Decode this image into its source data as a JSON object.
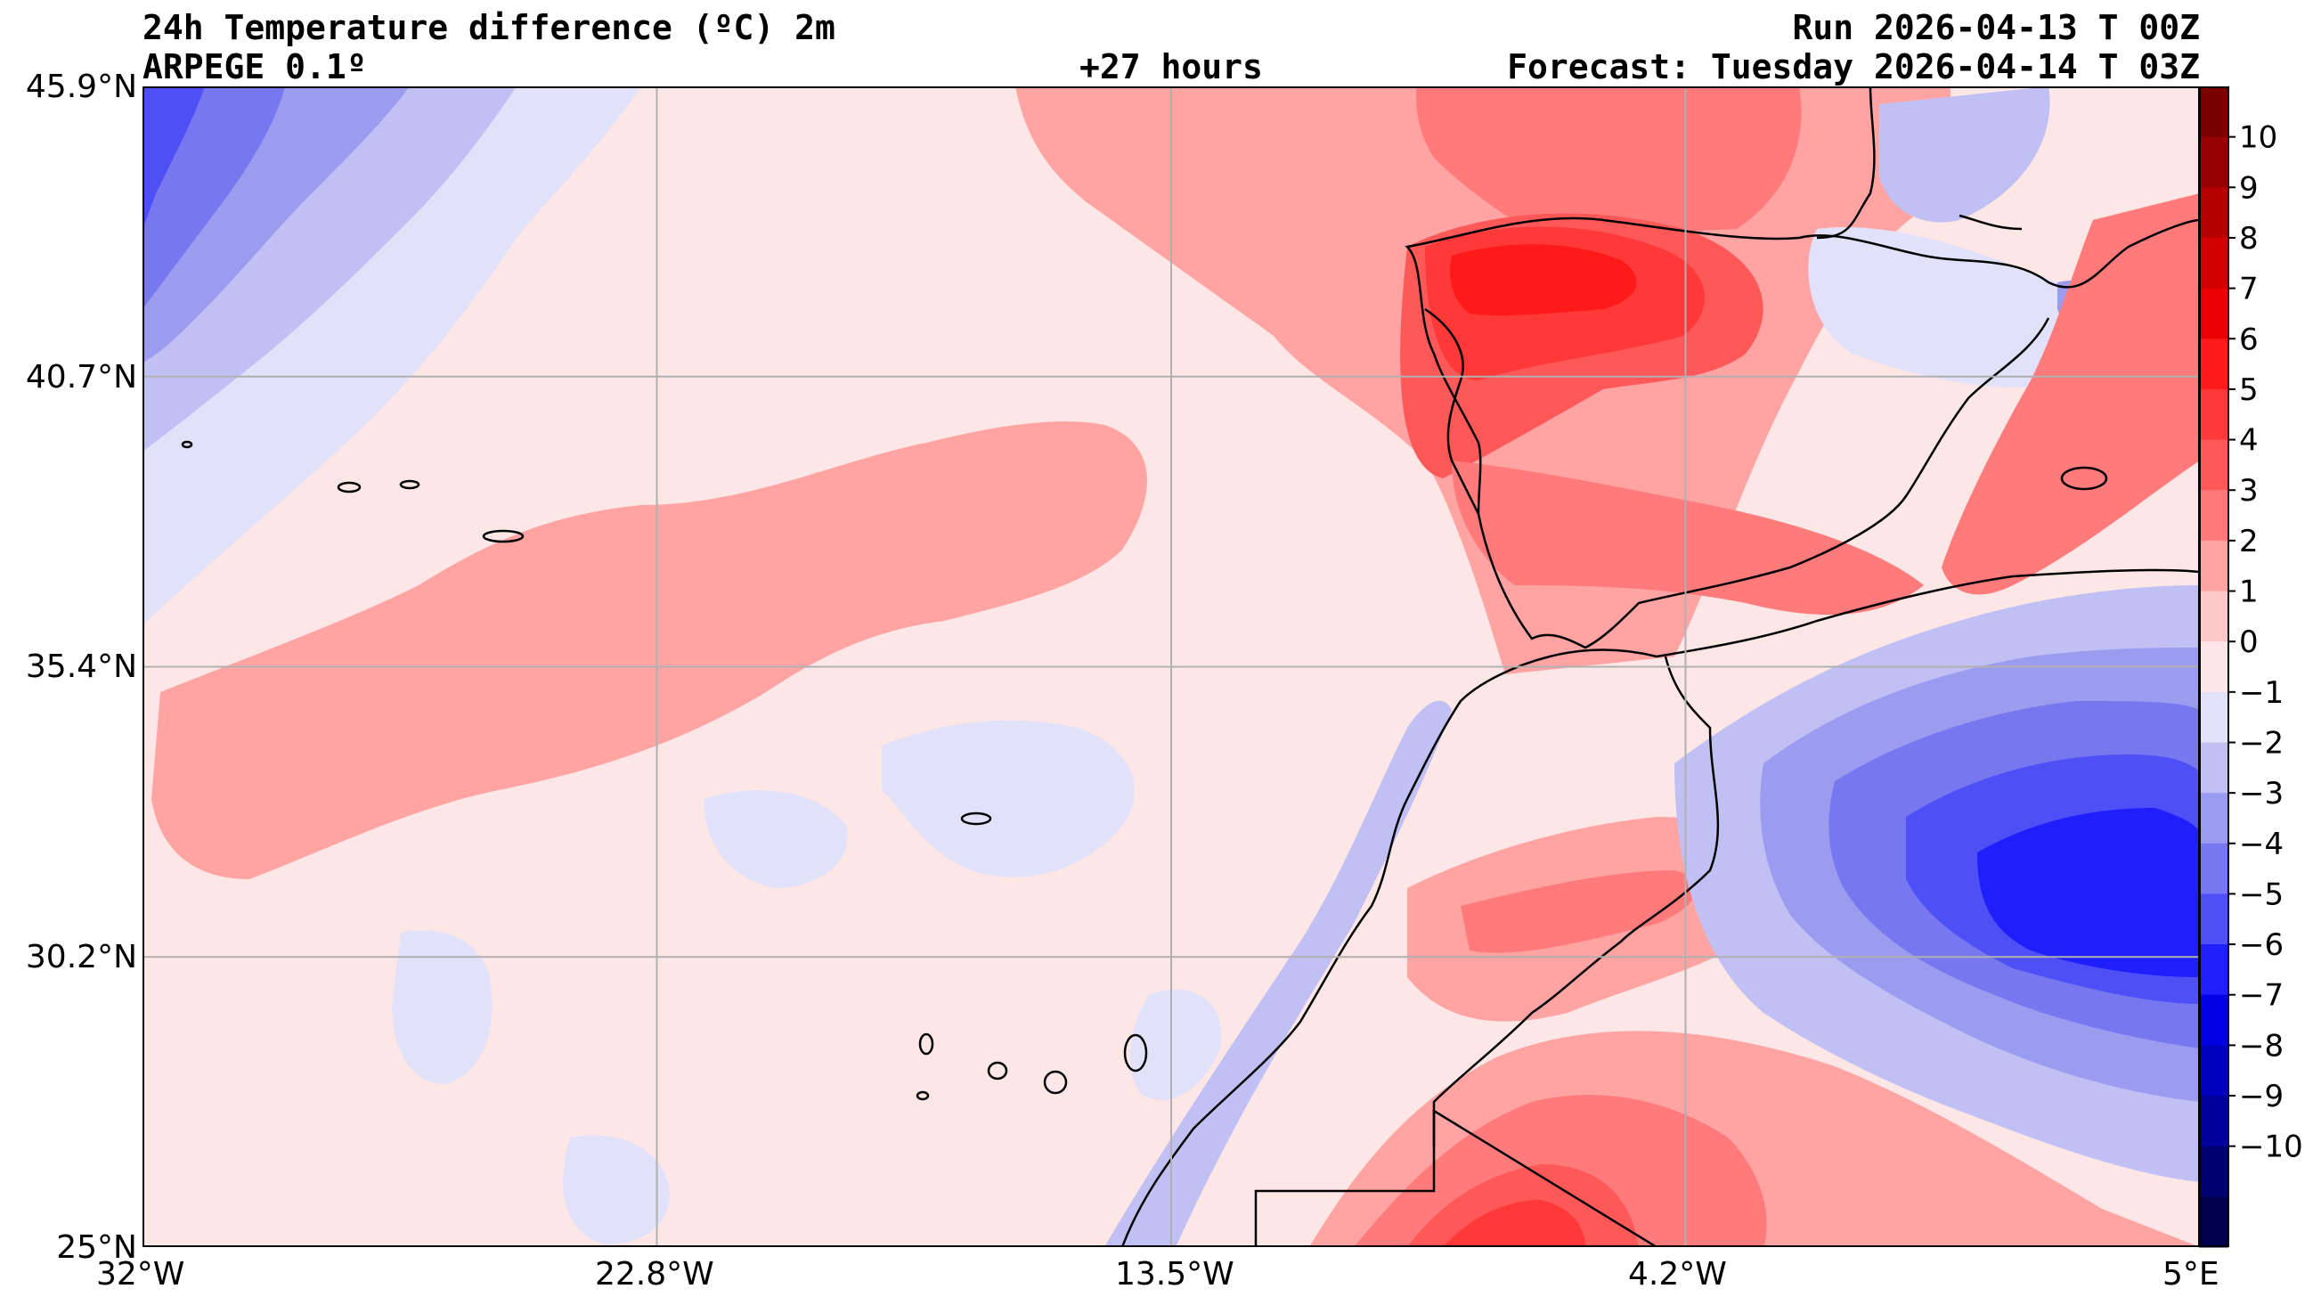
{
  "header": {
    "title": "24h Temperature difference (ºC) 2m",
    "model": "ARPEGE 0.1º",
    "lead": "+27 hours",
    "run": "Run 2026-04-13 T 00Z",
    "forecast": "Forecast: Tuesday 2026-04-14 T 03Z"
  },
  "map": {
    "lon_range": [
      -32,
      5
    ],
    "lat_range": [
      25,
      45.9
    ],
    "lat_ticks": [
      "45.9°N",
      "40.7°N",
      "35.4°N",
      "30.2°N",
      "25°N"
    ],
    "lon_ticks": [
      "32°W",
      "22.8°W",
      "13.5°W",
      "4.2°W",
      "5°E"
    ],
    "gridlines": true,
    "grid_color": "#b0b0b0",
    "coastline_color": "#000000"
  },
  "colorbar": {
    "levels": [
      "10",
      "9",
      "8",
      "7",
      "6",
      "5",
      "4",
      "3",
      "2",
      "1",
      "0",
      "−1",
      "−2",
      "−3",
      "−4",
      "−5",
      "−6",
      "−7",
      "−8",
      "−9",
      "−10"
    ],
    "colors": [
      "#7a0000",
      "#960000",
      "#b40000",
      "#d20000",
      "#ea0000",
      "#ff1a1a",
      "#ff3838",
      "#ff5858",
      "#ff7a7a",
      "#ffa3a3",
      "#ffc8c8",
      "#fde6e6",
      "#e1e1fa",
      "#c0c0f5",
      "#9b9bf0",
      "#7777f0",
      "#4f4ff6",
      "#1f1ffb",
      "#0000e2",
      "#0000be",
      "#00009a",
      "#000070",
      "#00004e"
    ]
  }
}
